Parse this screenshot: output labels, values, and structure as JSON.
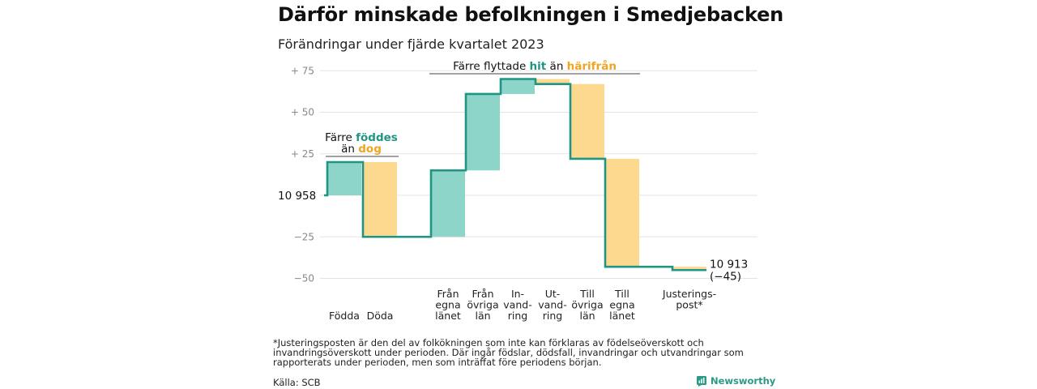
{
  "title": "Därför minskade befolkningen i Smedjebacken",
  "subtitle": "Förändringar under fjärde kvartalet 2023",
  "footnote": "*Justeringsposten är den del av folkökningen som inte kan förklaras av födelseöverskott och invandringsöverskott under perioden. Där ingår födslar, dödsfall, invandringar och utvandringar som rapporterats under perioden, men som inträffat före periodens början.",
  "source": "Källa: SCB",
  "brand": "Newsworthy",
  "colors": {
    "increase": "#8dd4c9",
    "decrease": "#fdd98f",
    "line": "#1f9583",
    "grid": "#e3e3e3",
    "teal_text": "#1f9583",
    "orange_text": "#f0a422"
  },
  "annotations": {
    "births": {
      "line1": "Färre",
      "teal": "föddes",
      "line2": "än",
      "orange": "dog"
    },
    "moves": {
      "prefix": "Färre flyttade",
      "teal": "hit",
      "mid": "än",
      "orange": "härifrån"
    }
  },
  "chart_data": {
    "type": "waterfall",
    "baseline_value": 10958,
    "baseline_label": "10  958",
    "end_label": [
      "10 913",
      "(−45)"
    ],
    "ylim": [
      -55,
      85
    ],
    "yticks": [
      {
        "value": 75,
        "label": "+  75"
      },
      {
        "value": 50,
        "label": "+  50"
      },
      {
        "value": 25,
        "label": "+  25"
      },
      {
        "value": -25,
        "label": "−25"
      },
      {
        "value": -50,
        "label": "−50"
      }
    ],
    "steps": [
      {
        "label": [
          "",
          "",
          "Födda"
        ],
        "delta": 20
      },
      {
        "label": [
          "",
          "",
          "Döda"
        ],
        "delta": -45
      },
      {
        "label": [
          "Från",
          "egna",
          "länet"
        ],
        "delta": 40
      },
      {
        "label": [
          "Från",
          "övriga",
          "län"
        ],
        "delta": 46
      },
      {
        "label": [
          "In-",
          "vand-",
          "ring"
        ],
        "delta": 9
      },
      {
        "label": [
          "Ut-",
          "vand-",
          "ring"
        ],
        "delta": -3
      },
      {
        "label": [
          "Till",
          "övriga",
          "län"
        ],
        "delta": -45
      },
      {
        "label": [
          "Till",
          "egna",
          "länet"
        ],
        "delta": -65
      },
      {
        "label": [
          "Justerings-",
          "post*",
          ""
        ],
        "delta": -2
      }
    ],
    "grid": true
  }
}
